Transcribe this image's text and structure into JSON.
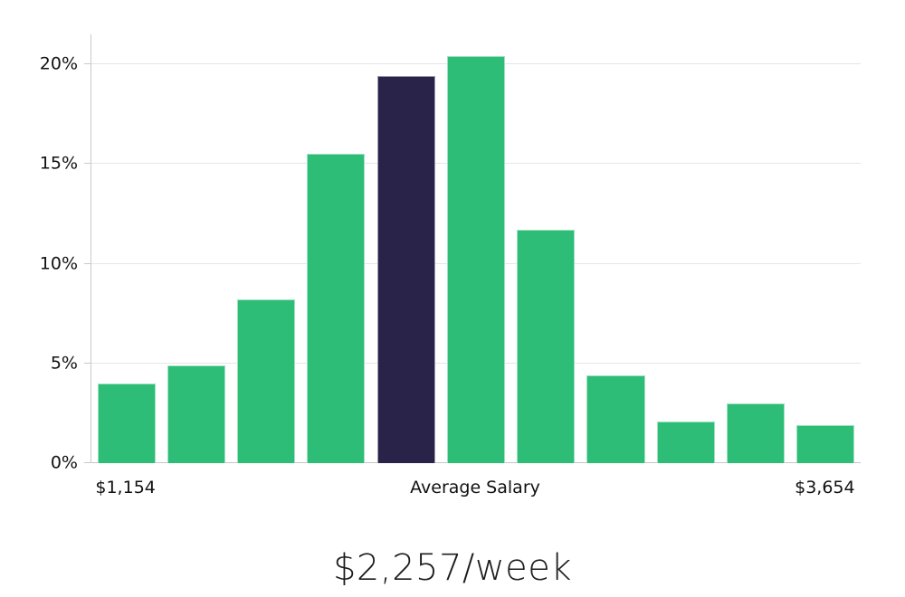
{
  "chart_data": {
    "type": "bar",
    "description": "Weekly salary distribution histogram with highlighted average-salary bar",
    "values": [
      4.0,
      4.9,
      8.2,
      15.5,
      19.4,
      20.4,
      11.7,
      4.4,
      2.1,
      3.0,
      1.9
    ],
    "highlighted_index": 4,
    "y_tick_values": [
      0,
      5,
      10,
      15,
      20
    ],
    "y_tick_labels": [
      "0%",
      "5%",
      "10%",
      "15%",
      "20%"
    ],
    "ylim": [
      0,
      21.5
    ],
    "xlabel": "",
    "ylabel": "",
    "title": "",
    "grid": "horizontal",
    "legend": "none",
    "x_axis_labels": {
      "left": "$1,154",
      "center": "Average Salary",
      "right": "$3,654"
    },
    "footer_label": "$2,257/week",
    "colors": {
      "bar": "#2dbd77",
      "highlight": "#2a2349",
      "gridline": "#e6e6e6",
      "baseline": "#c6c6c6",
      "axis": "#c9c9c9",
      "text": "#111111"
    }
  }
}
